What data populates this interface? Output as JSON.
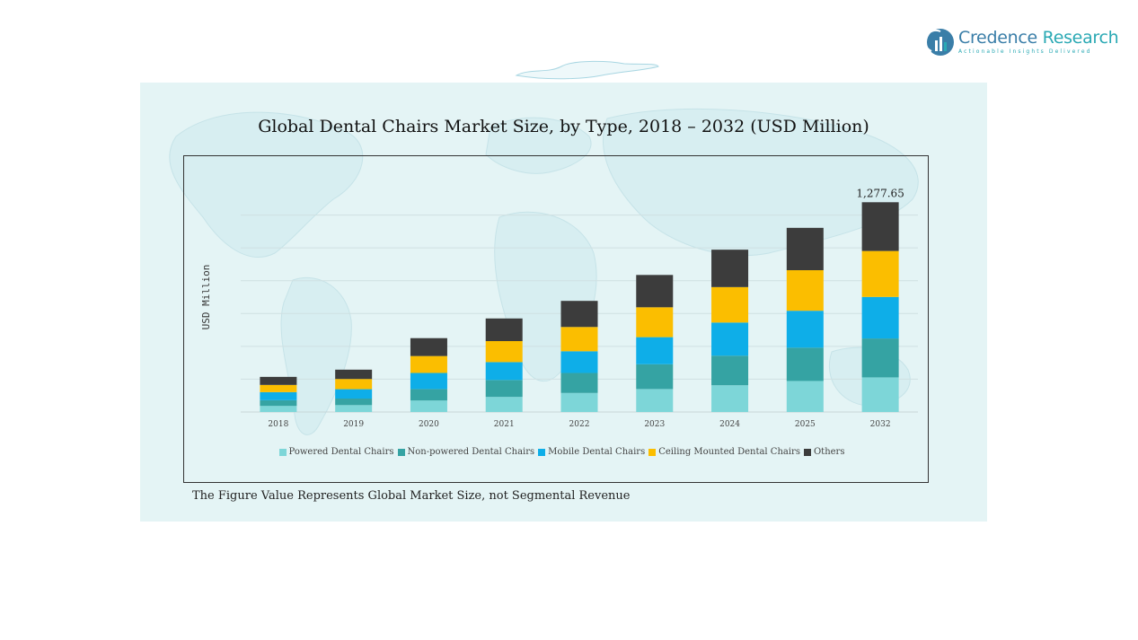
{
  "brand": {
    "name_part1": "Credence",
    "name_part2": "Research",
    "tagline": "Actionable Insights Delivered"
  },
  "footnote": "The Figure Value Represents Global Market Size, not Segmental Revenue",
  "chart_data": {
    "type": "bar",
    "stacked": true,
    "title": "Global Dental Chairs Market Size, by Type, 2018 – 2032 (USD Million)",
    "xlabel": "",
    "ylabel": "USD Million",
    "categories": [
      "2018",
      "2019",
      "2020",
      "2021",
      "2022",
      "2023",
      "2024",
      "2025",
      "2032"
    ],
    "ylim": [
      0,
      1400
    ],
    "grid": true,
    "legend_position": "bottom",
    "total_label": {
      "category": "2032",
      "text": "1,277.65"
    },
    "series": [
      {
        "name": "Powered Dental Chairs",
        "color": "#7dd6d8",
        "values": [
          37,
          42,
          70,
          92,
          116,
          140,
          163,
          189,
          211
        ]
      },
      {
        "name": "Non-powered Dental Chairs",
        "color": "#35a3a3",
        "values": [
          35,
          40,
          70,
          103,
          122,
          151,
          180,
          203,
          237
        ]
      },
      {
        "name": "Mobile Dental Chairs",
        "color": "#0eaee8",
        "values": [
          49,
          57,
          98,
          109,
          132,
          165,
          202,
          225,
          253
        ]
      },
      {
        "name": "Ceiling Mounted Dental Chairs",
        "color": "#fbbe00",
        "values": [
          44,
          62,
          103,
          128,
          148,
          182,
          216,
          247,
          280
        ]
      },
      {
        "name": "Others",
        "color": "#3c3c3c",
        "values": [
          49,
          57,
          109,
          138,
          159,
          197,
          228,
          258,
          297
        ]
      }
    ]
  }
}
